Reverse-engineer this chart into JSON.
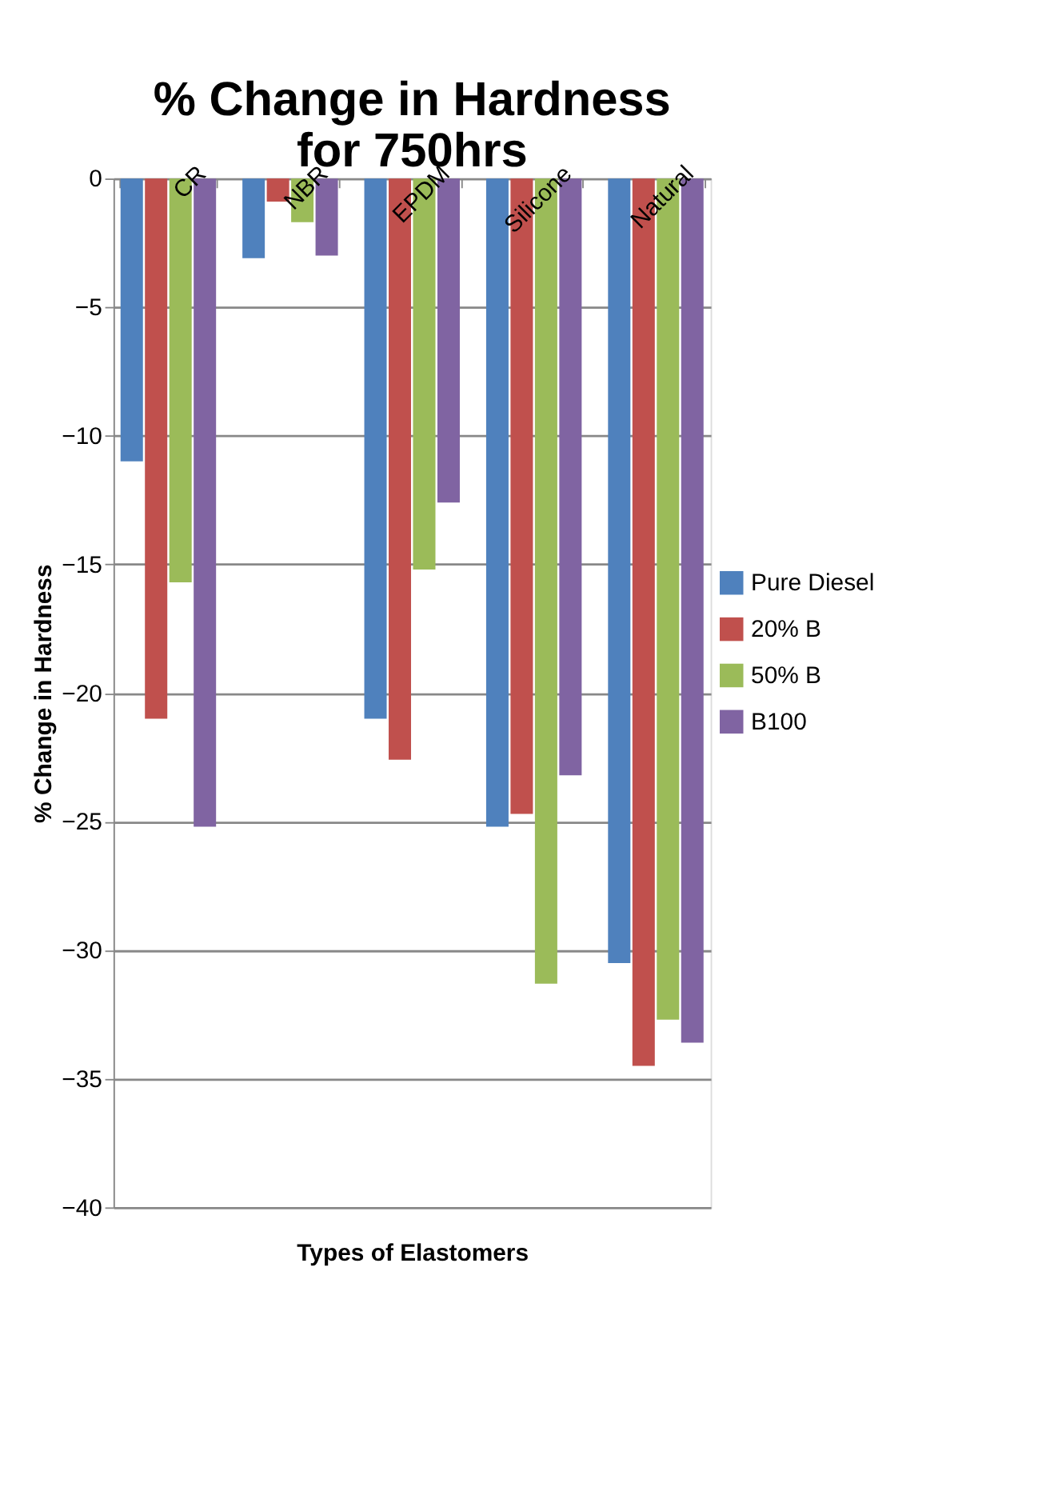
{
  "chart_data": {
    "type": "bar",
    "title": "% Change in Hardness for 750hrs",
    "xlabel": "Types of Elastomers",
    "ylabel": "% Change in Hardness",
    "categories": [
      "CR",
      "NBR",
      "EPDM",
      "Silicone",
      "Natural"
    ],
    "series": [
      {
        "name": "Pure Diesel",
        "color": "#4f81bd",
        "values": [
          -11,
          -3.1,
          -21,
          -25.2,
          -30.5
        ]
      },
      {
        "name": "20% B",
        "color": "#c0504d",
        "values": [
          -21,
          -0.9,
          -22.6,
          -24.7,
          -34.5
        ]
      },
      {
        "name": "50% B",
        "color": "#9bbb59",
        "values": [
          -15.7,
          -1.7,
          -15.2,
          -31.3,
          -32.7
        ]
      },
      {
        "name": "B100",
        "color": "#8064a2",
        "values": [
          -25.2,
          -3,
          -12.6,
          -23.2,
          -33.6
        ]
      }
    ],
    "ylim": [
      -40,
      0
    ],
    "yticks": [
      -40,
      -35,
      -30,
      -25,
      -20,
      -15,
      -10,
      -5,
      0
    ],
    "grid": "y",
    "legend": "right"
  }
}
